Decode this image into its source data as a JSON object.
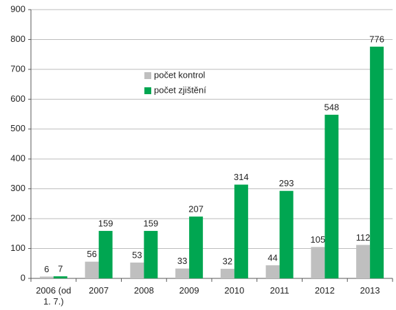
{
  "chart_data": {
    "type": "bar",
    "categories": [
      "2006 (od 1. 7.)",
      "2007",
      "2008",
      "2009",
      "2010",
      "2011",
      "2012",
      "2013"
    ],
    "series": [
      {
        "name": "počet kontrol",
        "color": "#bfbfbf",
        "values": [
          6,
          56,
          53,
          33,
          32,
          44,
          105,
          112
        ]
      },
      {
        "name": "počet zjištění",
        "color": "#00a651",
        "values": [
          7,
          159,
          159,
          207,
          314,
          293,
          548,
          776
        ]
      }
    ],
    "ylim": [
      0,
      900
    ],
    "yticks": [
      0,
      100,
      200,
      300,
      400,
      500,
      600,
      700,
      800,
      900
    ],
    "grid": true
  }
}
